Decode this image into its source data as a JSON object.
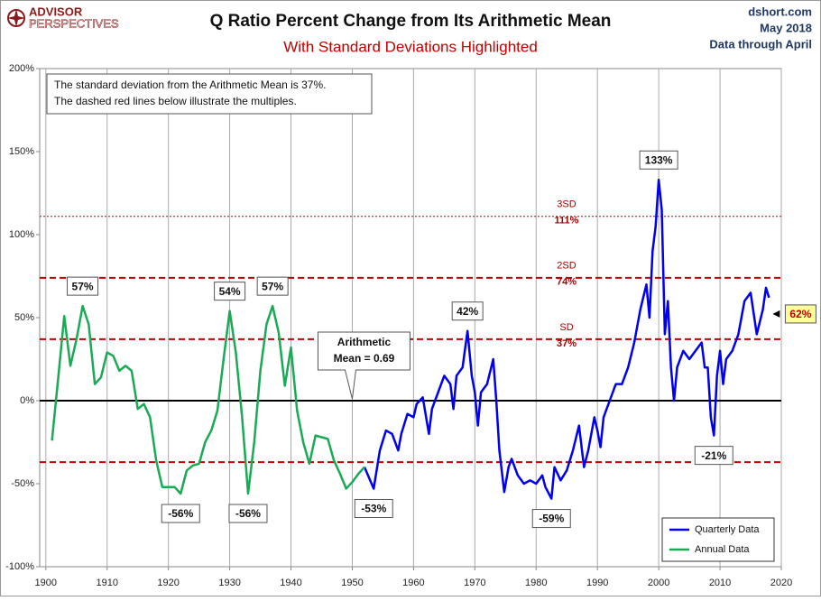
{
  "chart_data": {
    "type": "line",
    "title": "Q Ratio Percent Change from Its Arithmetic Mean",
    "subtitle": "With Standard Deviations Highlighted",
    "logo": {
      "top": "ADVISOR",
      "bottom": "PERSPECTIVES"
    },
    "source": [
      "dshort.com",
      "May 2018",
      "Data through April"
    ],
    "note": [
      "The standard deviation from the Arithmetic Mean is 37%.",
      "The dashed red lines below illustrate the multiples."
    ],
    "xlim": [
      1899,
      2020
    ],
    "xticks": [
      1900,
      1910,
      1920,
      1930,
      1940,
      1950,
      1960,
      1970,
      1980,
      1990,
      2000,
      2010,
      2020
    ],
    "ylim": [
      -100,
      200
    ],
    "yticks": [
      {
        "value": -100,
        "label": "-100%"
      },
      {
        "value": -50,
        "label": "-50%"
      },
      {
        "value": 0,
        "label": "0%"
      },
      {
        "value": 50,
        "label": "50%"
      },
      {
        "value": 100,
        "label": "100%"
      },
      {
        "value": 150,
        "label": "150%"
      },
      {
        "value": 200,
        "label": "200%"
      }
    ],
    "grid": "x",
    "legend": "bottom-right",
    "series": [
      {
        "name": "Quarterly Data",
        "color": "#0000ee",
        "x": [
          1952,
          1953.5,
          1954.5,
          1955.5,
          1956.5,
          1957.5,
          1958,
          1959,
          1960,
          1960.5,
          1961.5,
          1962.5,
          1963,
          1964,
          1965,
          1966,
          1966.5,
          1967,
          1968,
          1968.8,
          1969.5,
          1970,
          1970.5,
          1971,
          1972,
          1973,
          1973.5,
          1974,
          1974.8,
          1975.5,
          1976,
          1977,
          1978,
          1979,
          1980,
          1981,
          1981.5,
          1982.5,
          1983,
          1984,
          1985,
          1986,
          1987,
          1987.8,
          1988.5,
          1989,
          1989.5,
          1990,
          1990.5,
          1991,
          1992,
          1993,
          1994,
          1995,
          1996,
          1997,
          1998,
          1998.5,
          1999,
          1999.5,
          2000,
          2000.5,
          2001,
          2001.5,
          2002,
          2002.5,
          2003,
          2004,
          2005,
          2006,
          2007,
          2007.5,
          2008,
          2008.5,
          2009,
          2009.5,
          2010,
          2010.5,
          2011,
          2012,
          2013,
          2014,
          2015,
          2016,
          2017,
          2017.5,
          2018
        ],
        "values": [
          -40,
          -53,
          -30,
          -18,
          -20,
          -30,
          -20,
          -8,
          -10,
          -2,
          2,
          -20,
          -5,
          5,
          15,
          10,
          -5,
          15,
          20,
          42,
          15,
          5,
          -15,
          5,
          10,
          25,
          0,
          -30,
          -55,
          -40,
          -35,
          -45,
          -50,
          -48,
          -50,
          -45,
          -52,
          -59,
          -40,
          -48,
          -42,
          -30,
          -15,
          -40,
          -30,
          -20,
          -10,
          -18,
          -28,
          -10,
          0,
          10,
          10,
          20,
          35,
          55,
          70,
          50,
          90,
          105,
          133,
          115,
          40,
          60,
          20,
          0,
          20,
          30,
          25,
          30,
          35,
          20,
          20,
          -10,
          -21,
          15,
          30,
          10,
          25,
          30,
          40,
          60,
          65,
          40,
          55,
          68,
          62
        ]
      },
      {
        "name": "Annual Data",
        "color": "#1aaa55",
        "x": [
          1901,
          1902,
          1903,
          1904,
          1905,
          1906,
          1907,
          1908,
          1909,
          1910,
          1911,
          1912,
          1913,
          1914,
          1915,
          1916,
          1917,
          1918,
          1919,
          1920,
          1921,
          1922,
          1923,
          1924,
          1925,
          1926,
          1927,
          1928,
          1929,
          1930,
          1931,
          1932,
          1933,
          1934,
          1935,
          1936,
          1937,
          1938,
          1939,
          1940,
          1941,
          1942,
          1943,
          1944,
          1945,
          1946,
          1947,
          1948,
          1949,
          1950,
          1951,
          1952
        ],
        "values": [
          -24,
          13,
          51,
          21,
          37,
          57,
          46,
          10,
          14,
          29,
          27,
          18,
          21,
          18,
          -5,
          -2,
          -10,
          -36,
          -52,
          -52,
          -52,
          -56,
          -42,
          -39,
          -38,
          -25,
          -18,
          -6,
          25,
          54,
          29,
          -9,
          -56,
          -25,
          18,
          46,
          57,
          41,
          9,
          32,
          -6,
          -25,
          -38,
          -21,
          -22,
          -23,
          -36,
          -44,
          -53,
          -49,
          -44,
          -40
        ]
      }
    ],
    "reference_lines": [
      {
        "value": 111,
        "style": "dotted",
        "label": [
          "3SD",
          "111%"
        ]
      },
      {
        "value": 74,
        "style": "dashed",
        "label": [
          "2SD",
          "74%"
        ]
      },
      {
        "value": 37,
        "style": "dashed",
        "label": [
          "SD",
          "37%"
        ]
      },
      {
        "value": 0,
        "style": "solid"
      },
      {
        "value": -37,
        "style": "dashed"
      }
    ],
    "mean_callout": {
      "text": [
        "Arithmetic",
        "Mean = 0.69"
      ],
      "x": 1950,
      "y": 0
    },
    "annotations": [
      {
        "text": "57%",
        "x": 1906,
        "y": 57
      },
      {
        "text": "54%",
        "x": 1930,
        "y": 54
      },
      {
        "text": "57%",
        "x": 1937,
        "y": 57
      },
      {
        "text": "42%",
        "x": 1968.8,
        "y": 42
      },
      {
        "text": "133%",
        "x": 2000,
        "y": 133
      },
      {
        "text": "-56%",
        "x": 1922,
        "y": -56
      },
      {
        "text": "-56%",
        "x": 1933,
        "y": -56
      },
      {
        "text": "-53%",
        "x": 1953.5,
        "y": -53
      },
      {
        "text": "-59%",
        "x": 1982.5,
        "y": -59
      },
      {
        "text": "-21%",
        "x": 2009,
        "y": -21
      },
      {
        "text": "62%",
        "x": 2018,
        "y": 62,
        "style": "callout"
      }
    ]
  }
}
